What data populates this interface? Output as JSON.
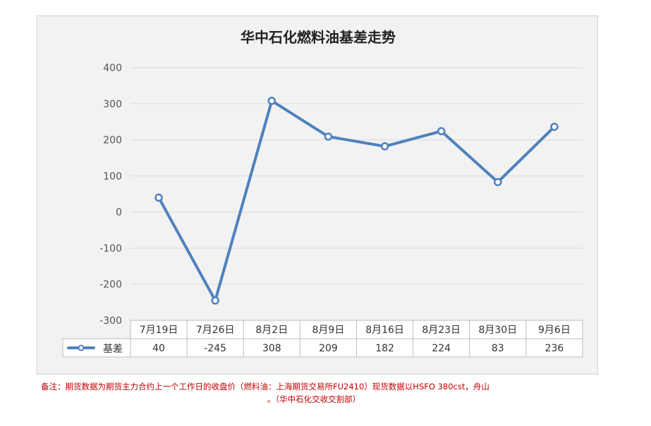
{
  "chart_data": {
    "type": "line",
    "title": "华中石化燃料油基差走势",
    "categories": [
      "7月19日",
      "7月26日",
      "8月2日",
      "8月9日",
      "8月16日",
      "8月23日",
      "8月30日",
      "9月6日"
    ],
    "series": [
      {
        "name": "基差",
        "values": [
          40,
          -245,
          308,
          209,
          182,
          224,
          83,
          236
        ],
        "color": "#4f81bd"
      }
    ],
    "ylim": [
      -300,
      400
    ],
    "yticks": [
      -300,
      -200,
      -100,
      0,
      100,
      200,
      300,
      400
    ],
    "grid": true,
    "legend": "data-table-left",
    "data_table": true
  },
  "footnote": {
    "line1": "备注：期货数据为期货主力合约上一个工作日的收盘价（燃料油：上海期货交易所FU2410）现货数据以HSFO 380cst，舟山",
    "line2": "。（华中石化交收交割部）"
  }
}
